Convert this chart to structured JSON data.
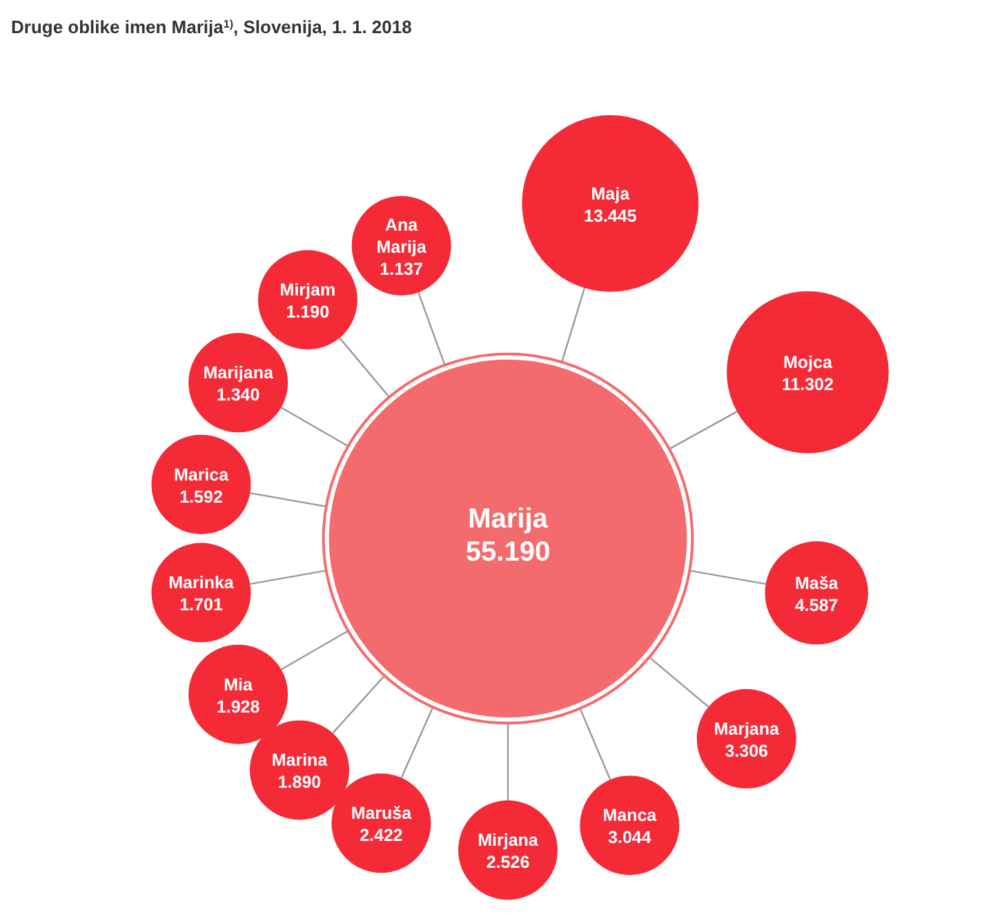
{
  "chart_data": {
    "type": "other",
    "title": "Druge oblike imen Marija$^{1)}$, Slovenija, 1. 1. 2018",
    "categories": [
      "Marija",
      "Maja",
      "Mojca",
      "Maša",
      "Marjana",
      "Manca",
      "Mirjana",
      "Maruša",
      "Marina",
      "Mia",
      "Marinka",
      "Marica",
      "Marijana",
      "Mirjam",
      "Ana Marija"
    ],
    "values": [
      55190,
      13445,
      11302,
      4587,
      3306,
      3044,
      2526,
      2422,
      1890,
      1928,
      1701,
      1592,
      1340,
      1190,
      1137
    ],
    "value_labels": [
      "55.190",
      "13.445",
      "11.302",
      "4.587",
      "3.306",
      "3.044",
      "2.526",
      "2.422",
      "1.890",
      "1.928",
      "1.701",
      "1.592",
      "1.340",
      "1.190",
      "1.137"
    ],
    "colors": [
      "#f46b6e",
      "#f52a37",
      "#f52a37",
      "#f52a37",
      "#f52a37",
      "#f52a37",
      "#f52a37",
      "#f52a37",
      "#f52a37",
      "#f52a37",
      "#f52a37",
      "#f52a37",
      "#f52a37",
      "#f52a37",
      "#f52a37"
    ]
  }
}
